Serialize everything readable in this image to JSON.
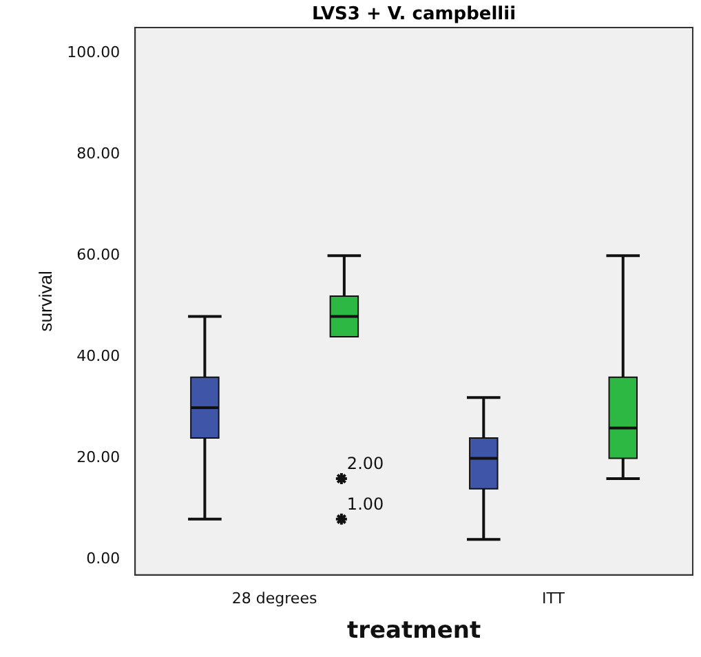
{
  "chart_data": {
    "type": "box",
    "title": "LVS3 + V. campbellii",
    "xlabel": "treatment",
    "ylabel": "survival",
    "categories": [
      "28 degrees",
      "ITT"
    ],
    "series": [
      {
        "color": "#3f56a8",
        "boxes": [
          {
            "low": 8,
            "q1": 24,
            "median": 30,
            "q3": 36,
            "high": 48
          },
          {
            "low": 4,
            "q1": 14,
            "median": 20,
            "q3": 24,
            "high": 32
          }
        ]
      },
      {
        "color": "#2db843",
        "boxes": [
          {
            "low": 44,
            "q1": 44,
            "median": 48,
            "q3": 52,
            "high": 60,
            "outliers": [
              16,
              8
            ]
          },
          {
            "low": 16,
            "q1": 20,
            "median": 26,
            "q3": 36,
            "high": 60
          }
        ]
      }
    ],
    "ylim": [
      -3,
      105
    ],
    "yticks": [
      {
        "value": 0,
        "label": "0.00"
      },
      {
        "value": 20,
        "label": "20.00"
      },
      {
        "value": 40,
        "label": "40.00"
      },
      {
        "value": 60,
        "label": "60.00"
      },
      {
        "value": 80,
        "label": "80.00"
      },
      {
        "value": 100,
        "label": "100.00"
      }
    ],
    "annotations": [
      "2.00",
      "1.00"
    ],
    "grid": false,
    "legend": false,
    "marker": "star"
  }
}
